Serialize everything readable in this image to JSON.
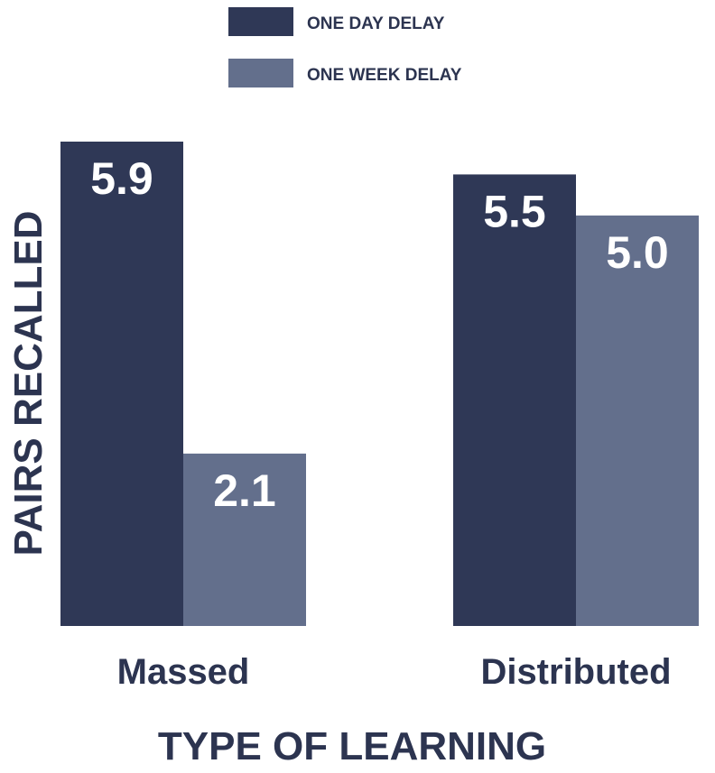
{
  "chart_data": {
    "type": "bar",
    "categories": [
      "Massed",
      "Distributed"
    ],
    "series": [
      {
        "name": "ONE DAY DELAY",
        "color": "#2f3856",
        "values": [
          5.9,
          5.5
        ]
      },
      {
        "name": "ONE WEEK DELAY",
        "color": "#636f8c",
        "values": [
          2.1,
          5.0
        ]
      }
    ],
    "value_labels": [
      [
        "5.9",
        "5.5"
      ],
      [
        "2.1",
        "5.0"
      ]
    ],
    "xlabel": "TYPE OF LEARNING",
    "ylabel": "PAIRS RECALLED",
    "ylim": [
      0,
      5.9
    ],
    "grid": false,
    "legend_position": "top-left"
  }
}
